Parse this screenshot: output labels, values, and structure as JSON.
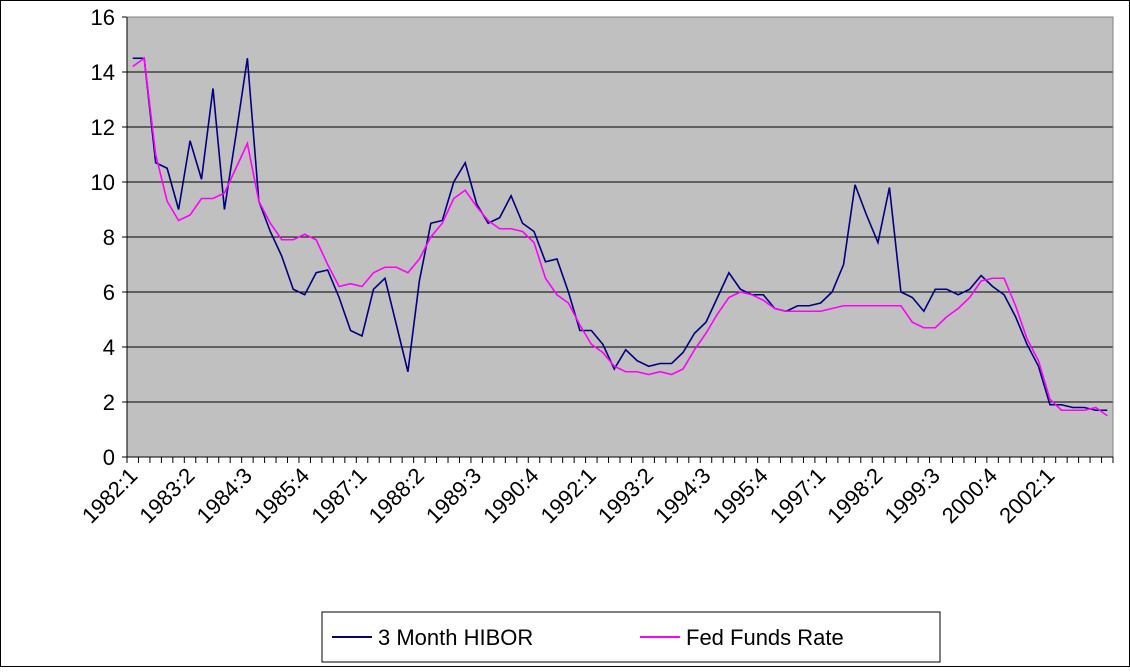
{
  "chart_data": {
    "type": "line",
    "categories": [
      "1982:1",
      null,
      null,
      null,
      null,
      "1983:2",
      null,
      null,
      null,
      null,
      "1984:3",
      null,
      null,
      null,
      null,
      "1985:4",
      null,
      null,
      null,
      null,
      "1987:1",
      null,
      null,
      null,
      null,
      "1988:2",
      null,
      null,
      null,
      null,
      "1989:3",
      null,
      null,
      null,
      null,
      "1990:4",
      null,
      null,
      null,
      null,
      "1992:1",
      null,
      null,
      null,
      null,
      "1993:2",
      null,
      null,
      null,
      null,
      "1994:3",
      null,
      null,
      null,
      null,
      "1995:4",
      null,
      null,
      null,
      null,
      "1997:1",
      null,
      null,
      null,
      null,
      "1998:2",
      null,
      null,
      null,
      null,
      "1999:3",
      null,
      null,
      null,
      null,
      "2000:4",
      null,
      null,
      null,
      null,
      "2002:1",
      null,
      null,
      null,
      null,
      null
    ],
    "series": [
      {
        "name": "3 Month HIBOR",
        "color": "#000080",
        "values": [
          14.5,
          14.5,
          10.7,
          10.5,
          9.0,
          11.5,
          10.1,
          13.4,
          9.0,
          11.7,
          14.5,
          9.3,
          8.2,
          7.3,
          6.1,
          5.9,
          6.7,
          6.8,
          5.8,
          4.6,
          4.4,
          6.1,
          6.5,
          4.8,
          3.1,
          6.4,
          8.5,
          8.6,
          10.0,
          10.7,
          9.2,
          8.5,
          8.7,
          9.5,
          8.5,
          8.2,
          7.1,
          7.2,
          6.0,
          4.6,
          4.6,
          4.1,
          3.2,
          3.9,
          3.5,
          3.3,
          3.4,
          3.4,
          3.8,
          4.5,
          4.9,
          5.8,
          6.7,
          6.1,
          5.9,
          5.9,
          5.4,
          5.3,
          5.5,
          5.5,
          5.6,
          6.0,
          7.0,
          9.9,
          8.8,
          7.8,
          9.8,
          6.0,
          5.8,
          5.3,
          6.1,
          6.1,
          5.9,
          6.1,
          6.6,
          6.2,
          5.9,
          5.1,
          4.1,
          3.3,
          1.9,
          1.9,
          1.8,
          1.8,
          1.7,
          1.7
        ]
      },
      {
        "name": "Fed Funds Rate",
        "color": "#ff00ff",
        "values": [
          14.2,
          14.5,
          11.0,
          9.3,
          8.6,
          8.8,
          9.4,
          9.4,
          9.6,
          10.5,
          11.4,
          9.3,
          8.5,
          7.9,
          7.9,
          8.1,
          7.9,
          7.0,
          6.2,
          6.3,
          6.2,
          6.7,
          6.9,
          6.9,
          6.7,
          7.2,
          8.0,
          8.5,
          9.4,
          9.7,
          9.1,
          8.6,
          8.3,
          8.3,
          8.2,
          7.8,
          6.5,
          5.9,
          5.6,
          4.8,
          4.1,
          3.8,
          3.3,
          3.1,
          3.1,
          3.0,
          3.1,
          3.0,
          3.2,
          3.9,
          4.5,
          5.2,
          5.8,
          6.0,
          5.9,
          5.7,
          5.4,
          5.3,
          5.3,
          5.3,
          5.3,
          5.4,
          5.5,
          5.5,
          5.5,
          5.5,
          5.5,
          5.5,
          4.9,
          4.7,
          4.7,
          5.1,
          5.4,
          5.8,
          6.4,
          6.5,
          6.5,
          5.5,
          4.3,
          3.5,
          2.1,
          1.7,
          1.7,
          1.7,
          1.8,
          1.5
        ]
      }
    ],
    "ylim": [
      0,
      16
    ],
    "yticks": [
      0,
      2,
      4,
      6,
      8,
      10,
      12,
      14,
      16
    ],
    "grid": true,
    "legend": "bottom"
  }
}
